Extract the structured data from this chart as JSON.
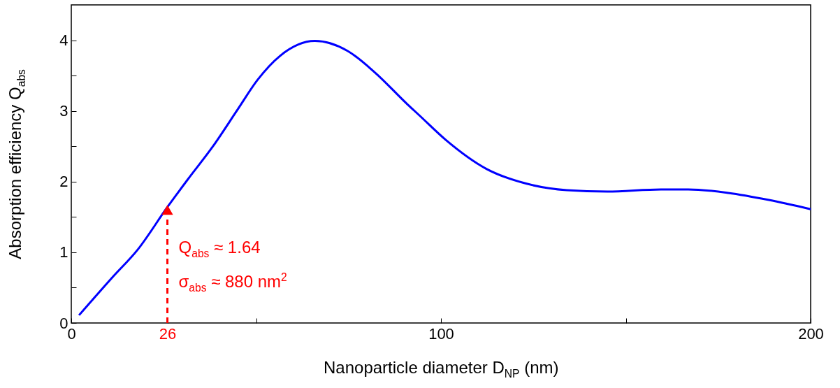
{
  "chart_data": {
    "type": "line",
    "xlabel": "Nanoparticle diameter D$_{NP}$ (nm)",
    "ylabel": "Absorption efficiency Q$_{abs}$",
    "xlim": [
      0,
      200
    ],
    "ylim": [
      0,
      4.5
    ],
    "xticks": [
      0,
      {
        "value": 26,
        "label": "26"
      },
      {
        "value": 50,
        "label": null
      },
      100,
      {
        "value": 150,
        "label": null
      },
      200
    ],
    "yticks": [
      0,
      {
        "value": 0.5,
        "label": null
      },
      1,
      {
        "value": 1.5,
        "label": null
      },
      2,
      {
        "value": 2.5,
        "label": null
      },
      3,
      {
        "value": 3.5,
        "label": null
      },
      4
    ],
    "grid": false,
    "series": [
      {
        "color": "#0000ff",
        "x": [
          2.1,
          11.2,
          18,
          26,
          31.5,
          38.2,
          45,
          50.4,
          56.5,
          65.9,
          74.7,
          82,
          91,
          94.1,
          101.3,
          112.3,
          123.2,
          134,
          145,
          159.5,
          166.9,
          177.7,
          188.7,
          200
        ],
        "values": [
          0.11,
          0.65,
          1.04,
          1.64,
          2.03,
          2.49,
          3.02,
          3.44,
          3.78,
          3.99,
          3.85,
          3.55,
          3.09,
          2.94,
          2.59,
          2.18,
          1.97,
          1.88,
          1.86,
          1.89,
          1.89,
          1.84,
          1.74,
          1.61
        ]
      },
      {
        "type": "line",
        "line_style": "dashed",
        "color": "#ff0000",
        "x": [
          26,
          26
        ],
        "values": [
          0,
          1.5
        ]
      },
      {
        "type": "scatter",
        "marker": "triangle",
        "color": "#ff0000",
        "x": [
          26
        ],
        "values": [
          1.6
        ]
      }
    ],
    "annotations": [
      "Q$_{abs}$ ≈ 1.64",
      "σ$_{abs}$ ≈ 880 nm$^{2}$"
    ]
  }
}
